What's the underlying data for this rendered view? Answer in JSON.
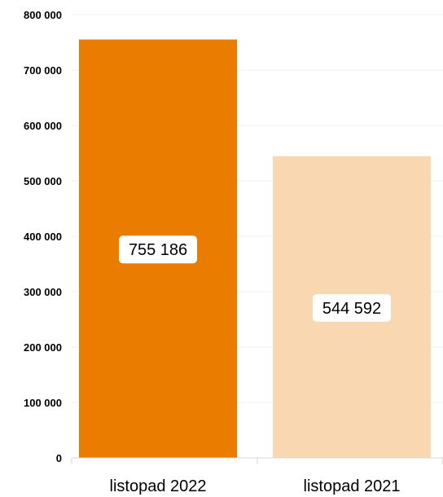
{
  "chart_data": {
    "type": "bar",
    "categories": [
      "listopad 2022",
      "listopad 2021"
    ],
    "values": [
      755186,
      544592
    ],
    "data_labels": [
      "755 186",
      "544 592"
    ],
    "colors": [
      "#ea7d00",
      "#f9d7b1"
    ],
    "ylim": [
      0,
      800000
    ],
    "yticks": [
      0,
      100000,
      200000,
      300000,
      400000,
      500000,
      600000,
      700000,
      800000
    ],
    "ytick_labels": [
      "0",
      "100 000",
      "200 000",
      "300 000",
      "400 000",
      "500 000",
      "600 000",
      "700 000",
      "800 000"
    ],
    "grid": true,
    "legend": "none",
    "title": "",
    "xlabel": "",
    "ylabel": ""
  }
}
